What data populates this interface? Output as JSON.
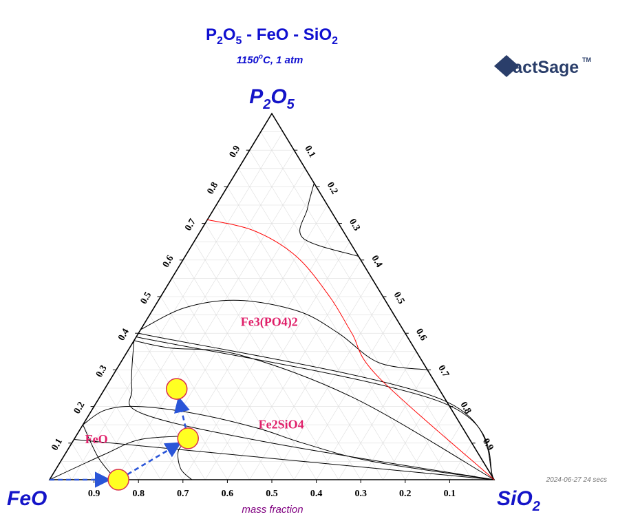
{
  "chart_data": {
    "type": "ternary",
    "title": {
      "p1": "P",
      "s1": "2",
      "p2": "O",
      "s2": "5",
      "p3": " - FeO - SiO",
      "s3": "2"
    },
    "subtitle": {
      "p1": "1150",
      "sup": "o",
      "p2": "C, 1 atm"
    },
    "vertices": {
      "top": {
        "base": "P",
        "sub1": "2",
        "mid": "O",
        "sub2": "5"
      },
      "left": {
        "base": "FeO"
      },
      "right": {
        "base": "SiO",
        "sub": "2"
      }
    },
    "axis_label": "mass fraction",
    "ticks": [
      "0.1",
      "0.2",
      "0.3",
      "0.4",
      "0.5",
      "0.6",
      "0.7",
      "0.8",
      "0.9"
    ],
    "bottom_ticks": [
      "0.9",
      "0.8",
      "0.7",
      "0.6",
      "0.5",
      "0.4",
      "0.3",
      "0.2",
      "0.1"
    ],
    "left_ticks": [
      "0.1",
      "0.2",
      "0.3",
      "0.4",
      "0.5",
      "0.6",
      "0.7",
      "0.8",
      "0.9"
    ],
    "right_ticks": [
      "0.1",
      "0.2",
      "0.3",
      "0.4",
      "0.5",
      "0.6",
      "0.7",
      "0.8",
      "0.9"
    ],
    "phase_labels": [
      {
        "text": "Fe3(PO4)2",
        "P2O5": 0.42,
        "SiO2": 0.22
      },
      {
        "text": "Fe2SiO4",
        "P2O5": 0.14,
        "SiO2": 0.4
      },
      {
        "text": "FeO",
        "P2O5": 0.1,
        "SiO2": 0.03
      }
    ],
    "boundary_curves": [
      {
        "color": "#000000",
        "points": [
          [
            0.38,
            0
          ],
          [
            0.25,
            0.06
          ],
          [
            0.18,
            0.12
          ],
          [
            0.1,
            0.45
          ],
          [
            0.0,
            1.0
          ]
        ]
      },
      {
        "color": "#000000",
        "points": [
          [
            0.38,
            0
          ],
          [
            0.36,
            0.09
          ],
          [
            0.34,
            0.26
          ],
          [
            0.22,
            0.58
          ],
          [
            0.0,
            1.0
          ]
        ]
      },
      {
        "color": "#000000",
        "points": [
          [
            0.39,
            0
          ],
          [
            0.21,
            0.78
          ],
          [
            0.0,
            1.0
          ]
        ]
      },
      {
        "color": "#000000",
        "points": [
          [
            0.4,
            0
          ],
          [
            0.22,
            0.77
          ],
          [
            0.0,
            1.0
          ]
        ]
      },
      {
        "color": "#000000",
        "points": [
          [
            0.41,
            0
          ],
          [
            0.47,
            0.07
          ],
          [
            0.49,
            0.18
          ],
          [
            0.46,
            0.33
          ],
          [
            0.4,
            0.45
          ],
          [
            0.32,
            0.58
          ],
          [
            0.3,
            0.7
          ]
        ]
      },
      {
        "color": "#000000",
        "points": [
          [
            0.15,
            0
          ],
          [
            0.19,
            0.03
          ],
          [
            0.2,
            0.1
          ],
          [
            0.18,
            0.24
          ],
          [
            0.14,
            0.4
          ],
          [
            0.1,
            0.52
          ],
          [
            0.05,
            0.7
          ],
          [
            0.0,
            1.0
          ]
        ]
      },
      {
        "color": "#000000",
        "points": [
          [
            0.11,
            0.0
          ],
          [
            0.0,
            1.0
          ]
        ]
      },
      {
        "color": "#000000",
        "points": [
          [
            0.0,
            0.15
          ],
          [
            0.06,
            0.08
          ],
          [
            0.15,
            0.0
          ]
        ]
      },
      {
        "color": "#000000",
        "points": [
          [
            0.0,
            0.32
          ],
          [
            0.03,
            0.28
          ],
          [
            0.08,
            0.25
          ],
          [
            0.11,
            0.26
          ]
        ]
      },
      {
        "color": "#000000",
        "points": [
          [
            0.0,
            0.0
          ],
          [
            0.07,
            0.09
          ],
          [
            0.11,
            0.15
          ],
          [
            0.12,
            0.26
          ]
        ]
      },
      {
        "color": "#000000",
        "points": [
          [
            0.81,
            0.19
          ],
          [
            0.74,
            0.21
          ],
          [
            0.66,
            0.24
          ],
          [
            0.61,
            0.39
          ]
        ]
      },
      {
        "color": "#ff0000",
        "points": [
          [
            0.71,
            0.0
          ],
          [
            0.68,
            0.12
          ],
          [
            0.61,
            0.25
          ],
          [
            0.5,
            0.38
          ],
          [
            0.4,
            0.48
          ],
          [
            0.28,
            0.6
          ],
          [
            0.0,
            1.0
          ]
        ]
      }
    ],
    "path_points": [
      {
        "P2O5": 0.0,
        "SiO2": 0.0
      },
      {
        "P2O5": 0.0,
        "SiO2": 0.155
      },
      {
        "P2O5": 0.113,
        "SiO2": 0.255
      },
      {
        "P2O5": 0.248,
        "SiO2": 0.162
      }
    ],
    "grid": true,
    "grid_step": 0.05
  },
  "logo": {
    "text": "FactSage",
    "tm": "TM"
  },
  "footer": {
    "timestamp": "2024-06-27  24 secs"
  },
  "colors": {
    "path": "#2a55d8",
    "point_fill": "#ffff22",
    "point_stroke": "#d83050",
    "boundary": "#000000",
    "liquidus": "#ff0000"
  }
}
